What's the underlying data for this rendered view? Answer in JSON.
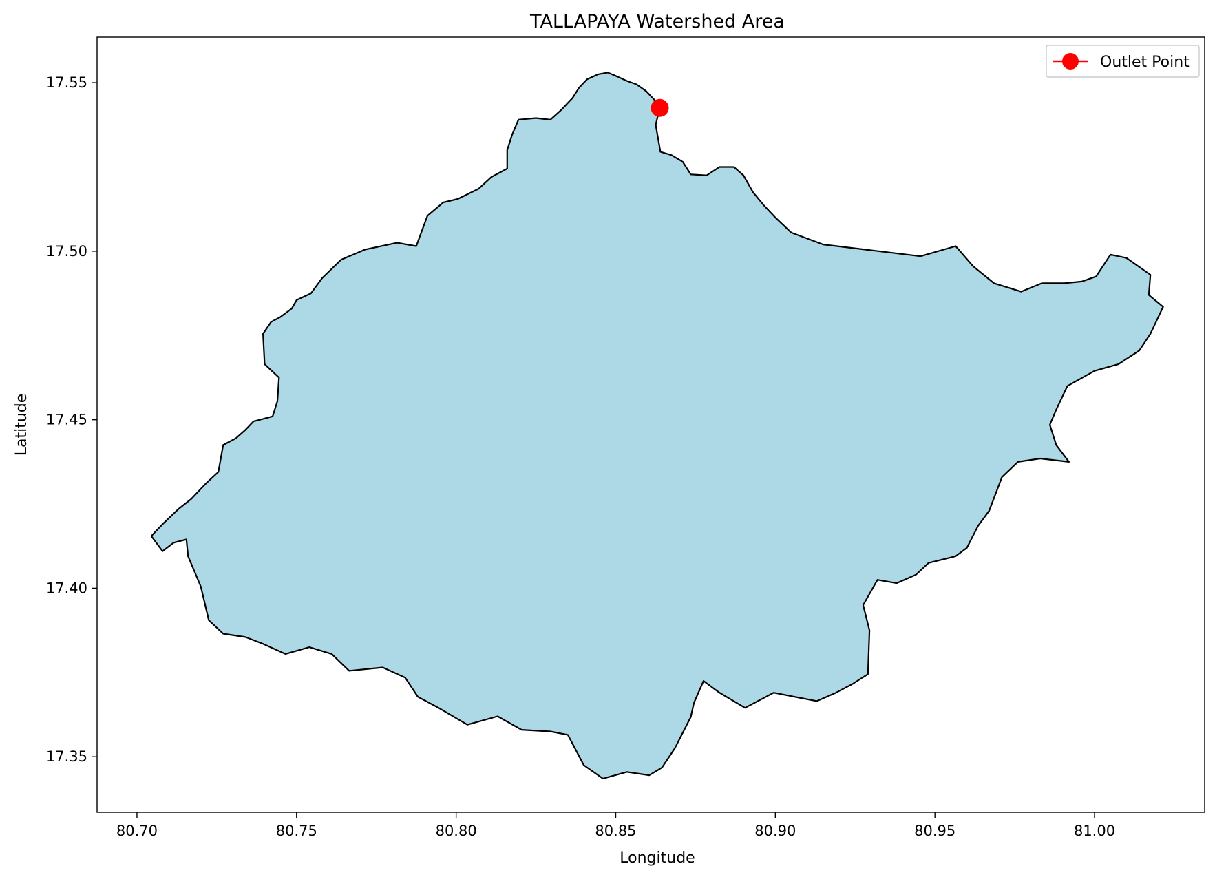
{
  "chart_data": {
    "type": "map",
    "title": "TALLAPAYA Watershed Area",
    "xlabel": "Longitude",
    "ylabel": "Latitude",
    "xlim": [
      80.6875,
      81.0345
    ],
    "ylim": [
      17.3335,
      17.5635
    ],
    "x_ticks": [
      80.7,
      80.75,
      80.8,
      80.85,
      80.9,
      80.95,
      81.0
    ],
    "x_tick_labels": [
      "80.70",
      "80.75",
      "80.80",
      "80.85",
      "80.90",
      "80.95",
      "81.00"
    ],
    "y_ticks": [
      17.35,
      17.4,
      17.45,
      17.5,
      17.55
    ],
    "y_tick_labels": [
      "17.35",
      "17.40",
      "17.45",
      "17.50",
      "17.55"
    ],
    "grid": false,
    "legend": {
      "position": "top-right",
      "entries": [
        {
          "label": "Outlet Point",
          "color": "#ff0000",
          "marker": "circle-line"
        }
      ]
    },
    "watershed": {
      "fill": "#add8e6",
      "edge": "#000000",
      "boundary": [
        [
          80.8445,
          17.5525
        ],
        [
          80.8475,
          17.553
        ],
        [
          80.8505,
          17.5518
        ],
        [
          80.8535,
          17.5505
        ],
        [
          80.8565,
          17.5495
        ],
        [
          80.8595,
          17.5475
        ],
        [
          80.8625,
          17.5445
        ],
        [
          80.8638,
          17.5425
        ],
        [
          80.8625,
          17.5375
        ],
        [
          80.864,
          17.5295
        ],
        [
          80.8675,
          17.5285
        ],
        [
          80.871,
          17.5265
        ],
        [
          80.8735,
          17.5228
        ],
        [
          80.8785,
          17.5225
        ],
        [
          80.8825,
          17.525
        ],
        [
          80.887,
          17.525
        ],
        [
          80.89,
          17.5225
        ],
        [
          80.893,
          17.5175
        ],
        [
          80.8965,
          17.5135
        ],
        [
          80.9,
          17.51
        ],
        [
          80.905,
          17.5055
        ],
        [
          80.915,
          17.502
        ],
        [
          80.928,
          17.5005
        ],
        [
          80.9455,
          17.4985
        ],
        [
          80.9565,
          17.5015
        ],
        [
          80.962,
          17.4955
        ],
        [
          80.9685,
          17.4905
        ],
        [
          80.977,
          17.488
        ],
        [
          80.9835,
          17.4905
        ],
        [
          80.9905,
          17.4905
        ],
        [
          80.996,
          17.491
        ],
        [
          81.0005,
          17.4925
        ],
        [
          81.005,
          17.499
        ],
        [
          81.01,
          17.498
        ],
        [
          81.0175,
          17.493
        ],
        [
          81.017,
          17.487
        ],
        [
          81.0215,
          17.4835
        ],
        [
          81.0175,
          17.4755
        ],
        [
          81.014,
          17.4705
        ],
        [
          81.0075,
          17.4665
        ],
        [
          81.0,
          17.4645
        ],
        [
          80.9915,
          17.46
        ],
        [
          80.988,
          17.453
        ],
        [
          80.986,
          17.4485
        ],
        [
          80.988,
          17.4425
        ],
        [
          80.992,
          17.4375
        ],
        [
          80.983,
          17.4385
        ],
        [
          80.976,
          17.4375
        ],
        [
          80.971,
          17.433
        ],
        [
          80.967,
          17.423
        ],
        [
          80.9635,
          17.4185
        ],
        [
          80.96,
          17.412
        ],
        [
          80.9565,
          17.4095
        ],
        [
          80.948,
          17.4075
        ],
        [
          80.944,
          17.404
        ],
        [
          80.938,
          17.4015
        ],
        [
          80.932,
          17.4025
        ],
        [
          80.9275,
          17.395
        ],
        [
          80.9295,
          17.3875
        ],
        [
          80.929,
          17.3745
        ],
        [
          80.924,
          17.3715
        ],
        [
          80.919,
          17.369
        ],
        [
          80.913,
          17.3665
        ],
        [
          80.9075,
          17.3675
        ],
        [
          80.8995,
          17.369
        ],
        [
          80.8905,
          17.3645
        ],
        [
          80.8825,
          17.369
        ],
        [
          80.8775,
          17.3725
        ],
        [
          80.8745,
          17.366
        ],
        [
          80.8735,
          17.3618
        ],
        [
          80.8685,
          17.3525
        ],
        [
          80.8645,
          17.3468
        ],
        [
          80.8605,
          17.3445
        ],
        [
          80.8535,
          17.3455
        ],
        [
          80.846,
          17.3435
        ],
        [
          80.84,
          17.3475
        ],
        [
          80.835,
          17.3565
        ],
        [
          80.8295,
          17.3575
        ],
        [
          80.8205,
          17.358
        ],
        [
          80.813,
          17.362
        ],
        [
          80.8035,
          17.3595
        ],
        [
          80.7945,
          17.3645
        ],
        [
          80.788,
          17.3678
        ],
        [
          80.784,
          17.3735
        ],
        [
          80.777,
          17.3765
        ],
        [
          80.7665,
          17.3755
        ],
        [
          80.761,
          17.3805
        ],
        [
          80.754,
          17.3825
        ],
        [
          80.7465,
          17.3805
        ],
        [
          80.7395,
          17.3835
        ],
        [
          80.734,
          17.3855
        ],
        [
          80.727,
          17.3865
        ],
        [
          80.7225,
          17.3905
        ],
        [
          80.72,
          17.4005
        ],
        [
          80.716,
          17.4095
        ],
        [
          80.7155,
          17.4145
        ],
        [
          80.7115,
          17.4135
        ],
        [
          80.708,
          17.411
        ],
        [
          80.7045,
          17.4155
        ],
        [
          80.708,
          17.419
        ],
        [
          80.713,
          17.4235
        ],
        [
          80.717,
          17.4265
        ],
        [
          80.7215,
          17.431
        ],
        [
          80.7255,
          17.4345
        ],
        [
          80.727,
          17.4425
        ],
        [
          80.731,
          17.4445
        ],
        [
          80.734,
          17.447
        ],
        [
          80.7365,
          17.4495
        ],
        [
          80.7425,
          17.451
        ],
        [
          80.744,
          17.4555
        ],
        [
          80.7445,
          17.4625
        ],
        [
          80.74,
          17.4665
        ],
        [
          80.7395,
          17.4755
        ],
        [
          80.742,
          17.479
        ],
        [
          80.745,
          17.4805
        ],
        [
          80.7485,
          17.483
        ],
        [
          80.75,
          17.4855
        ],
        [
          80.7545,
          17.4875
        ],
        [
          80.758,
          17.492
        ],
        [
          80.764,
          17.4975
        ],
        [
          80.7715,
          17.5005
        ],
        [
          80.7815,
          17.5025
        ],
        [
          80.7875,
          17.5015
        ],
        [
          80.791,
          17.5105
        ],
        [
          80.796,
          17.5145
        ],
        [
          80.8005,
          17.5155
        ],
        [
          80.807,
          17.5185
        ],
        [
          80.811,
          17.522
        ],
        [
          80.816,
          17.5245
        ],
        [
          80.816,
          17.53
        ],
        [
          80.8175,
          17.5345
        ],
        [
          80.8195,
          17.539
        ],
        [
          80.825,
          17.5395
        ],
        [
          80.8295,
          17.539
        ],
        [
          80.833,
          17.542
        ],
        [
          80.8365,
          17.5455
        ],
        [
          80.8385,
          17.5485
        ],
        [
          80.841,
          17.551
        ]
      ]
    },
    "outlet_point": {
      "label": "Outlet Point",
      "x": 80.8638,
      "y": 17.5425,
      "color": "#ff0000"
    }
  }
}
